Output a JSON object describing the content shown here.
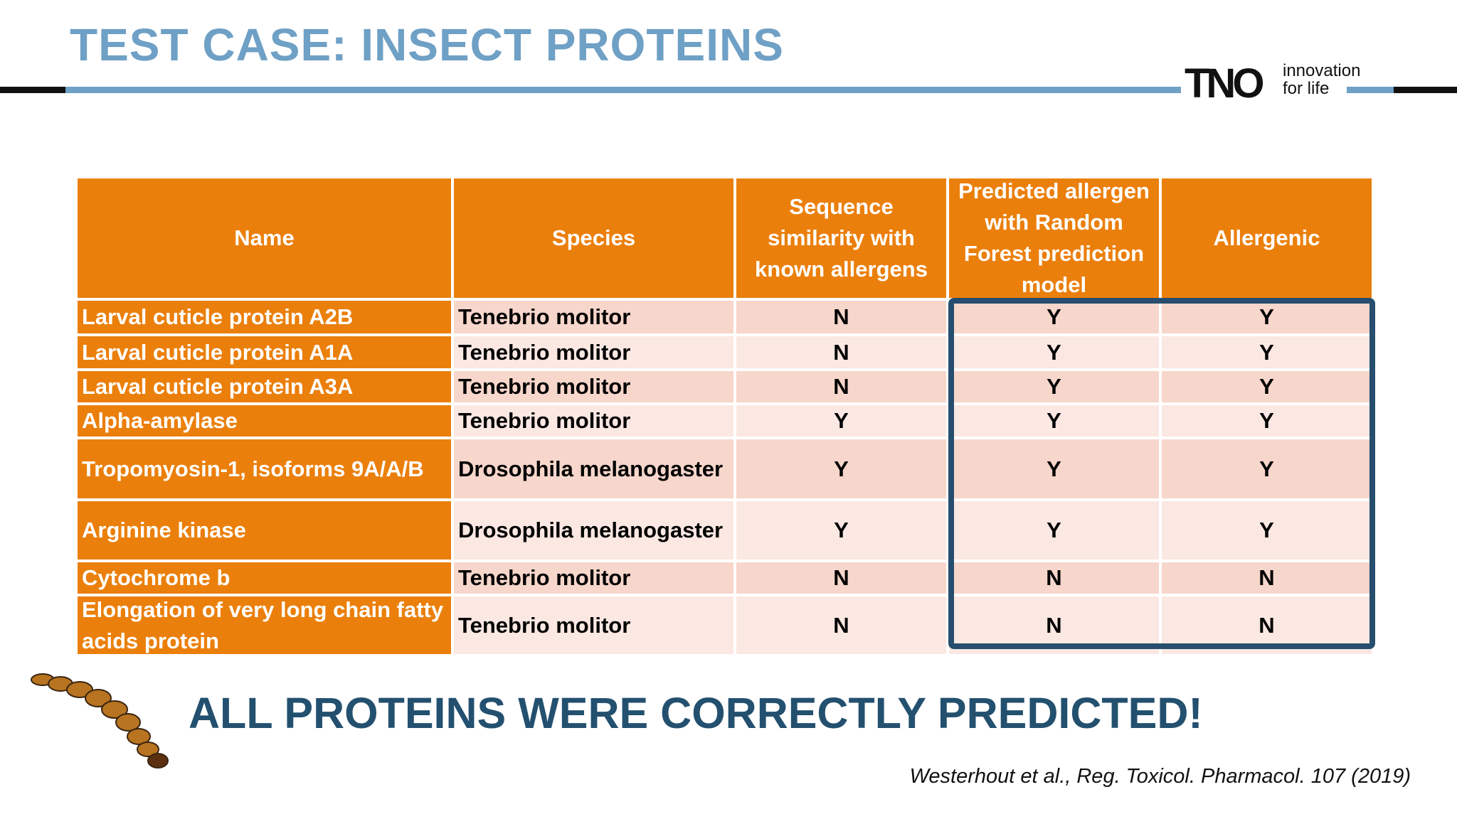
{
  "header": {
    "title": "TEST CASE: INSECT PROTEINS"
  },
  "logo": {
    "mark": "TNO",
    "tagline": [
      "innovation",
      "for life"
    ]
  },
  "table": {
    "columns": [
      "Name",
      "Species",
      "Sequence similarity with known allergens",
      "Predicted allergen with Random Forest prediction model",
      "Allergenic"
    ],
    "rows": [
      [
        "Larval cuticle protein A2B",
        "Tenebrio molitor",
        "N",
        "Y",
        "Y"
      ],
      [
        "Larval cuticle protein A1A",
        "Tenebrio molitor",
        "N",
        "Y",
        "Y"
      ],
      [
        "Larval cuticle protein A3A",
        "Tenebrio molitor",
        "N",
        "Y",
        "Y"
      ],
      [
        "Alpha-amylase",
        "Tenebrio molitor",
        "Y",
        "Y",
        "Y"
      ],
      [
        "Tropomyosin-1, isoforms 9A/A/B",
        "Drosophila melanogaster",
        "Y",
        "Y",
        "Y"
      ],
      [
        "Arginine kinase",
        "Drosophila melanogaster",
        "Y",
        "Y",
        "Y"
      ],
      [
        "Cytochrome b",
        "Tenebrio molitor",
        "N",
        "N",
        "N"
      ],
      [
        "Elongation of very long chain fatty acids protein",
        "Tenebrio molitor",
        "N",
        "N",
        "N"
      ]
    ]
  },
  "conclusion": "ALL PROTEINS WERE CORRECTLY PREDICTED!",
  "citation": "Westerhout et al., Reg. Toxicol. Pharmacol. 107 (2019)"
}
